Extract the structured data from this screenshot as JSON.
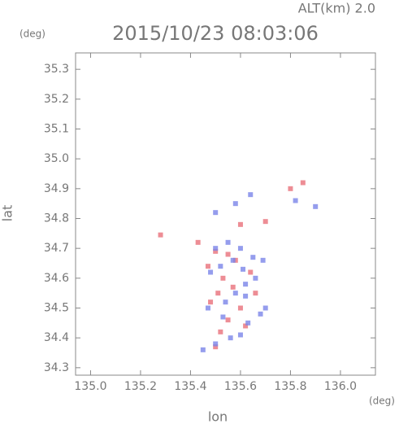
{
  "chart_data": {
    "type": "scatter",
    "title": "2015/10/23 08:03:06",
    "subtitle": "ALT(km) 2.0",
    "y_unit": "(deg)",
    "x_unit": "(deg)",
    "x_label": "lon",
    "y_label": "lat",
    "xlim": [
      134.94,
      136.14
    ],
    "ylim": [
      34.275,
      35.355
    ],
    "xticks": [
      {
        "value": 135.0,
        "label": "135.0"
      },
      135.2,
      135.4,
      135.6,
      135.8,
      {
        "value": 136.0,
        "label": "136.0"
      }
    ],
    "yticks": [
      34.3,
      34.4,
      34.5,
      34.6,
      34.7,
      34.8,
      34.9,
      {
        "value": 35.0,
        "label": "35.0"
      },
      35.1,
      35.2,
      35.3
    ],
    "series": [
      {
        "color": "#e8707a",
        "x": [
          135.28,
          135.43,
          135.5,
          135.52,
          135.55,
          135.48,
          135.6,
          135.62,
          135.53,
          135.58,
          135.66,
          135.5,
          135.57,
          135.64,
          135.47,
          135.55,
          135.85,
          135.8,
          135.6,
          135.7,
          135.51
        ],
        "values": [
          34.745,
          34.72,
          34.37,
          34.42,
          34.46,
          34.52,
          34.5,
          34.44,
          34.6,
          34.66,
          34.55,
          34.69,
          34.57,
          34.62,
          34.64,
          34.68,
          34.92,
          34.9,
          34.78,
          34.79,
          34.55
        ]
      },
      {
        "color": "#7a84e8",
        "x": [
          135.45,
          135.5,
          135.56,
          135.6,
          135.63,
          135.68,
          135.7,
          135.54,
          135.58,
          135.62,
          135.66,
          135.48,
          135.52,
          135.57,
          135.61,
          135.65,
          135.5,
          135.55,
          135.6,
          135.47,
          135.53,
          135.62,
          135.69,
          135.9,
          135.82,
          135.5,
          135.58,
          135.64
        ],
        "values": [
          34.36,
          34.38,
          34.4,
          34.41,
          34.45,
          34.48,
          34.5,
          34.52,
          34.55,
          34.58,
          34.6,
          34.62,
          34.64,
          34.66,
          34.63,
          34.67,
          34.7,
          34.72,
          34.7,
          34.5,
          34.47,
          34.54,
          34.66,
          34.84,
          34.86,
          34.82,
          34.85,
          34.88
        ]
      }
    ]
  }
}
